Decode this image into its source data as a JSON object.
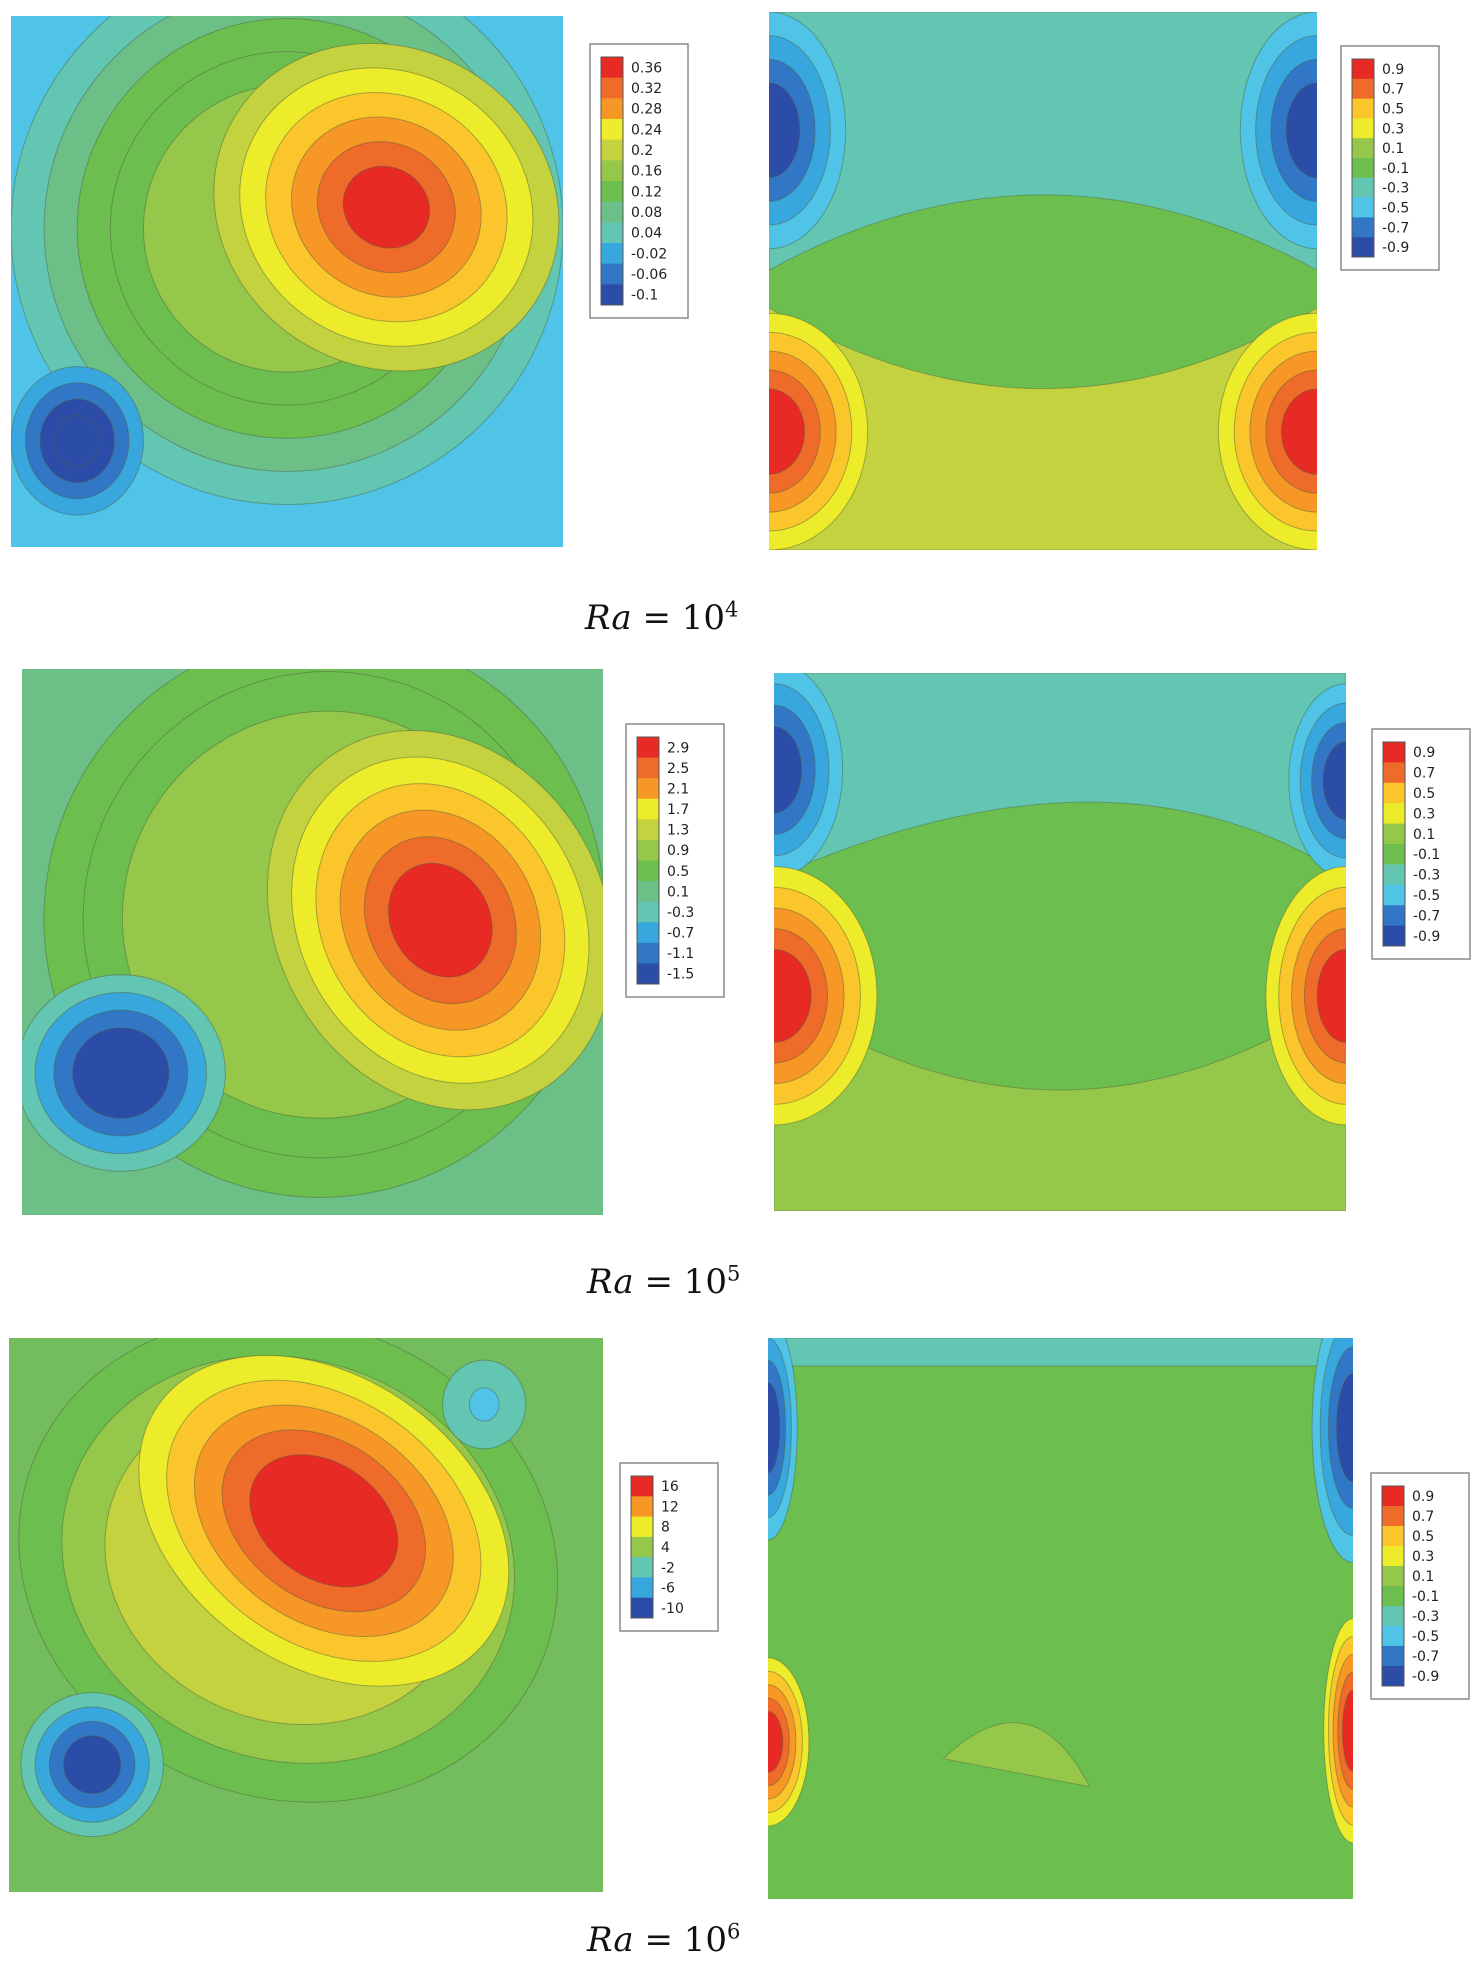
{
  "chart_data": [
    {
      "type": "heatmap",
      "caption": {
        "prefix": "Ra",
        "equals": "=",
        "base": "10",
        "exponent": "4"
      },
      "panels": [
        {
          "field": "left",
          "legend": {
            "ticks": [
              "0.36",
              "0.32",
              "0.28",
              "0.24",
              "0.2",
              "0.16",
              "0.12",
              "0.08",
              "0.04",
              "-0.02",
              "-0.06",
              "-0.1"
            ],
            "range": [
              -0.1,
              0.36
            ]
          },
          "background_color": "#4fc4e6",
          "extrema": [
            {
              "kind": "max",
              "value": 0.36,
              "loc": [
                0.68,
                0.36
              ]
            },
            {
              "kind": "min",
              "value": -0.1,
              "loc": [
                0.12,
                0.8
              ]
            }
          ]
        },
        {
          "field": "right",
          "legend": {
            "ticks": [
              "0.9",
              "0.7",
              "0.5",
              "0.3",
              "0.1",
              "-0.1",
              "-0.3",
              "-0.5",
              "-0.7",
              "-0.9"
            ],
            "range": [
              -0.9,
              0.9
            ]
          }
        }
      ]
    },
    {
      "type": "heatmap",
      "caption": {
        "prefix": "Ra",
        "equals": "=",
        "base": "10",
        "exponent": "5"
      },
      "panels": [
        {
          "field": "left",
          "legend": {
            "ticks": [
              "2.9",
              "2.5",
              "2.1",
              "1.7",
              "1.3",
              "0.9",
              "0.5",
              "0.1",
              "-0.3",
              "-0.7",
              "-1.1",
              "-1.5"
            ],
            "range": [
              -1.5,
              2.9
            ]
          },
          "background_color": "#6cc087",
          "extrema": [
            {
              "kind": "max",
              "value": 2.9,
              "loc": [
                0.72,
                0.46
              ]
            },
            {
              "kind": "min",
              "value": -1.5,
              "loc": [
                0.17,
                0.74
              ]
            }
          ]
        },
        {
          "field": "right",
          "legend": {
            "ticks": [
              "0.9",
              "0.7",
              "0.5",
              "0.3",
              "0.1",
              "-0.1",
              "-0.3",
              "-0.5",
              "-0.7",
              "-0.9"
            ],
            "range": [
              -0.9,
              0.9
            ]
          }
        }
      ]
    },
    {
      "type": "heatmap",
      "caption": {
        "prefix": "Ra",
        "equals": "=",
        "base": "10",
        "exponent": "6"
      },
      "panels": [
        {
          "field": "left",
          "legend": {
            "ticks": [
              "16",
              "12",
              "8",
              "4",
              "-2",
              "-6",
              "-10"
            ],
            "range": [
              -10,
              16
            ]
          },
          "background_color": "#74bd5e",
          "extrema": [
            {
              "kind": "max",
              "value": 16,
              "loc": [
                0.53,
                0.33
              ]
            },
            {
              "kind": "min",
              "value": -10,
              "loc": [
                0.14,
                0.77
              ]
            }
          ]
        },
        {
          "field": "right",
          "legend": {
            "ticks": [
              "0.9",
              "0.7",
              "0.5",
              "0.3",
              "0.1",
              "-0.1",
              "-0.3",
              "-0.5",
              "-0.7",
              "-0.9"
            ],
            "range": [
              -0.9,
              0.9
            ]
          }
        }
      ]
    }
  ]
}
